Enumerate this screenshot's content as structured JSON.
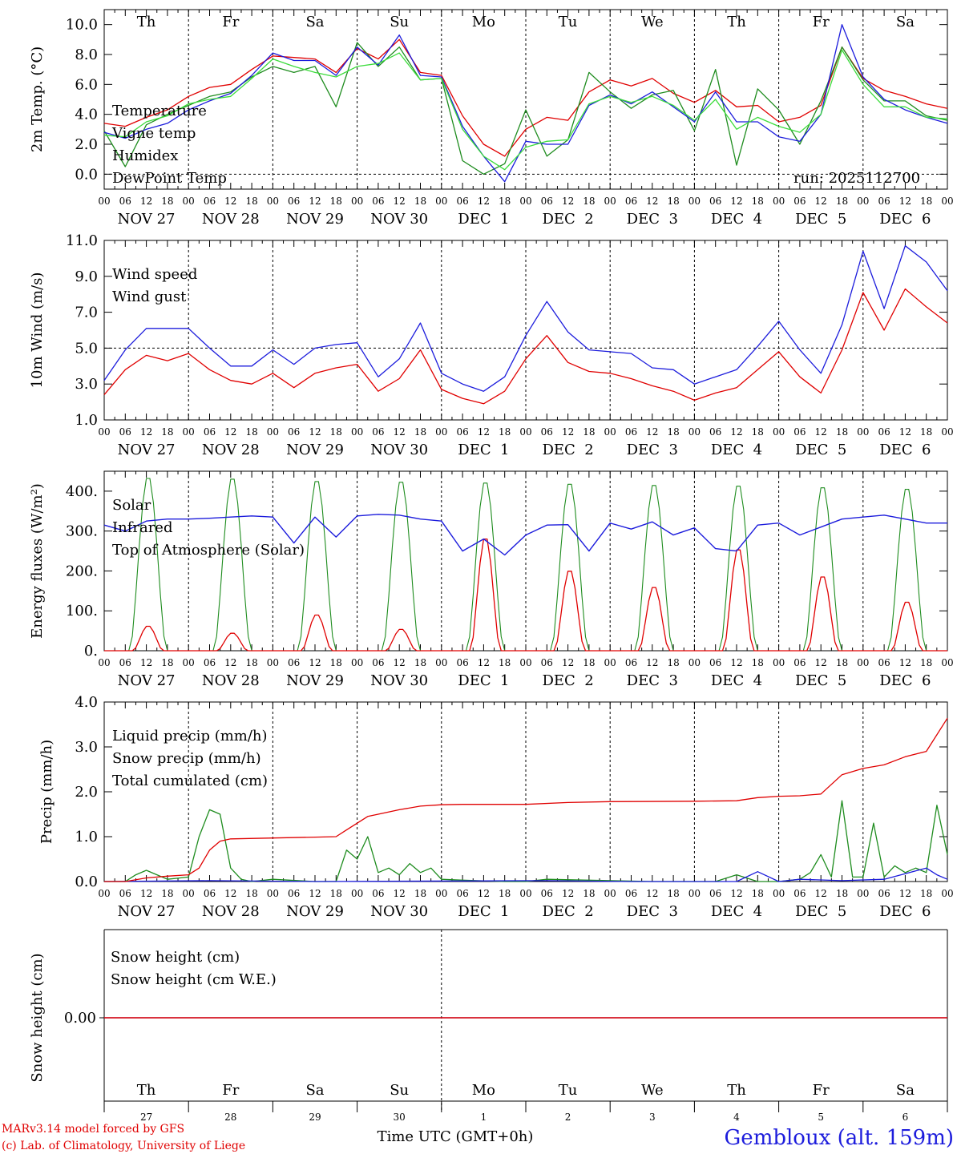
{
  "colors": {
    "red": "#e00000",
    "darkgreen": "#1e8c1e",
    "blue": "#1c1cdc",
    "lightgreen": "#3cdc3c",
    "axis": "#000000"
  },
  "days": [
    "NOV 27",
    "NOV 28",
    "NOV 29",
    "NOV 30",
    "DEC  1",
    "DEC  2",
    "DEC  3",
    "DEC  4",
    "DEC  5",
    "DEC  6"
  ],
  "dow": [
    "Th",
    "Fr",
    "Sa",
    "Su",
    "Mo",
    "Tu",
    "We",
    "Th",
    "Fr",
    "Sa"
  ],
  "dow_colors": [
    "#000000",
    "#000000",
    "#e00000",
    "#e00000",
    "#000000",
    "#000000",
    "#000000",
    "#000000",
    "#000000",
    "#e00000"
  ],
  "hour_ticks": [
    "00",
    "06",
    "12",
    "18"
  ],
  "final_hour_tick": "00",
  "bottom_day_numbers": [
    "27",
    "28",
    "29",
    "30",
    "1",
    "2",
    "3",
    "4",
    "5",
    "6"
  ],
  "xlabel": "Time UTC (GMT+0h)",
  "credit_line1": "MARv3.14 model forced by GFS",
  "credit_line2": "(c) Lab. of Climatology, University of Liege",
  "station": "Gembloux (alt. 159m)",
  "run_label": "run: 2025112700",
  "chart_data": [
    {
      "type": "line",
      "id": "temp",
      "ylabel": "2m Temp. (°C)",
      "yticks": [
        "0.0",
        "2.0",
        "4.0",
        "6.0",
        "8.0",
        "10.0"
      ],
      "ylim": [
        -1.0,
        11.0
      ],
      "ref_line": 0.0,
      "x_hours": [
        0,
        6,
        12,
        18,
        24,
        30,
        36,
        42,
        48,
        54,
        60,
        66,
        72,
        78,
        84,
        90,
        96,
        102,
        108,
        114,
        120,
        126,
        132,
        138,
        144,
        150,
        156,
        162,
        168,
        174,
        180,
        186,
        192,
        198,
        204,
        210,
        216,
        222,
        228,
        234,
        240
      ],
      "series": [
        {
          "name": "Temperature",
          "color": "#e00000",
          "values": [
            3.4,
            3.2,
            3.8,
            4.3,
            5.2,
            5.8,
            6.0,
            7.0,
            7.9,
            7.8,
            7.7,
            6.8,
            8.4,
            7.7,
            9.0,
            6.8,
            6.6,
            3.9,
            2.0,
            1.2,
            3.0,
            3.8,
            3.6,
            5.5,
            6.3,
            5.9,
            6.4,
            5.4,
            4.8,
            5.6,
            4.5,
            4.6,
            3.5,
            3.8,
            4.6,
            8.5,
            6.4,
            5.6,
            5.2,
            4.7,
            4.4
          ]
        },
        {
          "name": "Vigne temp",
          "color": "#1e8c1e",
          "values": [
            2.9,
            0.5,
            3.3,
            4.0,
            4.6,
            5.2,
            5.5,
            6.5,
            7.2,
            6.8,
            7.2,
            4.5,
            8.8,
            7.2,
            8.5,
            6.3,
            6.4,
            0.9,
            0.0,
            0.7,
            4.3,
            1.2,
            2.3,
            6.8,
            5.5,
            4.4,
            5.3,
            5.6,
            2.9,
            7.0,
            0.6,
            5.7,
            4.3,
            2.0,
            4.9,
            8.5,
            6.3,
            4.9,
            4.9,
            3.9,
            3.6
          ]
        },
        {
          "name": "Humidex",
          "color": "#1c1cdc",
          "values": [
            2.8,
            2.4,
            3.0,
            3.4,
            4.3,
            4.9,
            5.4,
            6.6,
            8.1,
            7.6,
            7.6,
            6.6,
            8.5,
            7.3,
            9.3,
            6.6,
            6.5,
            3.2,
            1.2,
            -0.5,
            2.2,
            2.0,
            2.0,
            4.6,
            5.3,
            4.7,
            5.5,
            4.5,
            3.5,
            5.5,
            3.5,
            3.5,
            2.5,
            2.2,
            4.0,
            10.0,
            6.5,
            5.0,
            4.3,
            3.8,
            3.4
          ]
        },
        {
          "name": "DewPoint Temp",
          "color": "#3cdc3c",
          "values": [
            2.6,
            2.5,
            3.5,
            3.9,
            4.7,
            5.0,
            5.2,
            6.4,
            7.7,
            7.2,
            6.8,
            6.5,
            7.2,
            7.4,
            8.1,
            6.3,
            6.4,
            3.0,
            1.2,
            0.3,
            1.8,
            2.2,
            2.3,
            4.7,
            5.2,
            4.8,
            5.2,
            4.6,
            3.6,
            5.0,
            3.0,
            3.8,
            3.2,
            2.8,
            4.0,
            8.3,
            6.0,
            4.5,
            4.5,
            3.8,
            3.7
          ]
        }
      ]
    },
    {
      "type": "line",
      "id": "wind",
      "ylabel": "10m Wind (m/s)",
      "yticks": [
        "1.0",
        "3.0",
        "5.0",
        "7.0",
        "9.0",
        "11.0"
      ],
      "ylim": [
        1.0,
        11.0
      ],
      "ref_line": 5.0,
      "x_hours": [
        0,
        6,
        12,
        18,
        24,
        30,
        36,
        42,
        48,
        54,
        60,
        66,
        72,
        78,
        84,
        90,
        96,
        102,
        108,
        114,
        120,
        126,
        132,
        138,
        144,
        150,
        156,
        162,
        168,
        174,
        180,
        186,
        192,
        198,
        204,
        210,
        216,
        222,
        228,
        234,
        240
      ],
      "series": [
        {
          "name": "Wind speed",
          "color": "#e00000",
          "values": [
            2.4,
            3.8,
            4.6,
            4.3,
            4.7,
            3.8,
            3.2,
            3.0,
            3.6,
            2.8,
            3.6,
            3.9,
            4.1,
            2.6,
            3.3,
            4.9,
            2.7,
            2.2,
            1.9,
            2.6,
            4.4,
            5.7,
            4.2,
            3.7,
            3.6,
            3.3,
            2.9,
            2.6,
            2.1,
            2.5,
            2.8,
            3.8,
            4.8,
            3.4,
            2.5,
            4.9,
            8.1,
            6.0,
            8.3,
            7.3,
            6.4
          ]
        },
        {
          "name": "Wind gust",
          "color": "#1c1cdc",
          "values": [
            3.2,
            4.9,
            6.1,
            6.1,
            6.1,
            5.0,
            4.0,
            4.0,
            4.9,
            4.1,
            5.0,
            5.2,
            5.3,
            3.4,
            4.4,
            6.4,
            3.6,
            3.0,
            2.6,
            3.4,
            5.7,
            7.6,
            5.9,
            4.9,
            4.8,
            4.7,
            3.9,
            3.8,
            3.0,
            3.4,
            3.8,
            5.1,
            6.5,
            4.9,
            3.6,
            6.3,
            10.4,
            7.2,
            10.7,
            9.8,
            8.2
          ]
        }
      ]
    },
    {
      "type": "line",
      "id": "energy",
      "ylabel": "Energy fluxes (W/m²)",
      "yticks": [
        "0.",
        "100.",
        "200.",
        "300.",
        "400."
      ],
      "ylim": [
        0,
        450
      ],
      "series": [
        {
          "name": "Solar",
          "color": "#e00000",
          "peaks": [
            63,
            45,
            92,
            55,
            288,
            205,
            163,
            260,
            190,
            125
          ]
        },
        {
          "name": "Infrared",
          "color": "#1c1cdc",
          "x_hours": [
            0,
            6,
            12,
            18,
            24,
            30,
            36,
            42,
            48,
            54,
            60,
            66,
            72,
            78,
            84,
            90,
            96,
            102,
            108,
            114,
            120,
            126,
            132,
            138,
            144,
            150,
            156,
            162,
            168,
            174,
            180,
            186,
            192,
            198,
            204,
            210,
            216,
            222,
            228,
            234,
            240
          ],
          "values": [
            315,
            300,
            325,
            330,
            330,
            332,
            335,
            338,
            335,
            270,
            335,
            285,
            338,
            342,
            340,
            330,
            325,
            250,
            280,
            240,
            290,
            315,
            316,
            250,
            320,
            305,
            323,
            290,
            308,
            256,
            250,
            315,
            320,
            290,
            310,
            330,
            335,
            340,
            330,
            320,
            320
          ]
        },
        {
          "name": "Top of Atmosphere (Solar)",
          "color": "#1e8c1e",
          "peaks": [
            440,
            438,
            432,
            430,
            428,
            425,
            422,
            420,
            416,
            412
          ]
        }
      ]
    },
    {
      "type": "line",
      "id": "precip",
      "ylabel": "Precip (mm/h)",
      "yticks": [
        "0.0",
        "1.0",
        "2.0",
        "3.0",
        "4.0"
      ],
      "ylim": [
        0,
        4.0
      ],
      "series": [
        {
          "name": "Liquid precip (mm/h)",
          "color": "#1e8c1e",
          "x_hours": [
            0,
            6,
            9,
            12,
            15,
            18,
            24,
            27,
            30,
            33,
            36,
            39,
            42,
            48,
            60,
            66,
            69,
            72,
            75,
            78,
            81,
            84,
            87,
            90,
            93,
            96,
            102,
            114,
            120,
            126,
            156,
            174,
            180,
            186,
            192,
            198,
            201,
            204,
            207,
            210,
            213,
            216,
            219,
            222,
            225,
            228,
            231,
            234,
            237,
            240
          ],
          "values": [
            0,
            0,
            0.15,
            0.25,
            0.15,
            0.05,
            0.1,
            1.0,
            1.6,
            1.5,
            0.3,
            0.05,
            0,
            0.05,
            0,
            0,
            0.7,
            0.5,
            1.0,
            0.2,
            0.3,
            0.15,
            0.4,
            0.2,
            0.3,
            0.05,
            0.03,
            0,
            0,
            0.05,
            0,
            0,
            0.15,
            0,
            0,
            0.05,
            0.2,
            0.6,
            0.1,
            1.8,
            0.1,
            0.1,
            1.3,
            0.1,
            0.35,
            0.2,
            0.3,
            0.2,
            1.7,
            0.6
          ]
        },
        {
          "name": "Snow precip (mm/h)",
          "color": "#1c1cdc",
          "x_hours": [
            0,
            30,
            60,
            126,
            150,
            180,
            186,
            192,
            198,
            210,
            222,
            234,
            237,
            240
          ],
          "values": [
            0,
            0.02,
            0,
            0.02,
            0,
            0,
            0.22,
            0,
            0.05,
            0.02,
            0.05,
            0.3,
            0.15,
            0.05
          ]
        },
        {
          "name": "Total cumulated (cm)",
          "color": "#e00000",
          "x_hours": [
            0,
            6,
            12,
            18,
            24,
            27,
            30,
            33,
            36,
            48,
            60,
            66,
            69,
            72,
            75,
            78,
            84,
            90,
            96,
            102,
            108,
            114,
            120,
            132,
            144,
            168,
            180,
            186,
            192,
            198,
            204,
            210,
            216,
            222,
            228,
            234,
            240
          ],
          "values": [
            0,
            0,
            0.08,
            0.12,
            0.15,
            0.3,
            0.7,
            0.9,
            0.95,
            0.97,
            0.99,
            1.0,
            1.15,
            1.3,
            1.45,
            1.5,
            1.6,
            1.68,
            1.71,
            1.72,
            1.72,
            1.72,
            1.72,
            1.76,
            1.78,
            1.79,
            1.8,
            1.87,
            1.9,
            1.91,
            1.95,
            2.38,
            2.52,
            2.6,
            2.78,
            2.9,
            3.64
          ]
        }
      ]
    },
    {
      "type": "line",
      "id": "snow",
      "ylabel": "Snow height (cm)",
      "yticks": [
        "0.00"
      ],
      "series": [
        {
          "name": "Snow height (cm)",
          "color": "#e00000",
          "values": [
            0.0,
            0.0
          ]
        },
        {
          "name": "Snow height (cm W.E.)",
          "color": "#1c1cdc",
          "values": [
            0.0,
            0.0
          ]
        }
      ]
    }
  ]
}
